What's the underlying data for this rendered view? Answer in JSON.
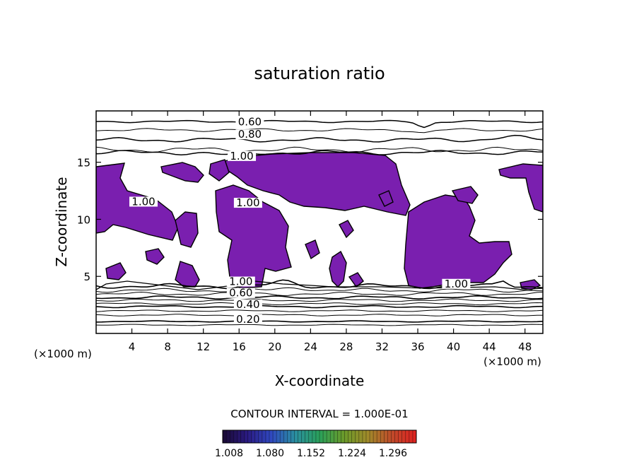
{
  "chart_data": {
    "type": "heatmap",
    "title": "saturation ratio",
    "xlabel": "X-coordinate",
    "ylabel": "Z-coordinate",
    "x_unit": "(×1000 m)",
    "y_unit": "(×1000 m)",
    "xlim": [
      0,
      50
    ],
    "ylim": [
      0,
      19.5
    ],
    "x_ticks": [
      4,
      8,
      12,
      16,
      20,
      24,
      28,
      32,
      36,
      40,
      44,
      48
    ],
    "y_ticks": [
      5,
      10,
      15
    ],
    "contour_interval_label": "CONTOUR INTERVAL = 1.000E-01",
    "colorbar": {
      "tick_labels": [
        "1.008",
        "1.080",
        "1.152",
        "1.224",
        "1.296"
      ],
      "colors": [
        "#1a0a33",
        "#2a1a80",
        "#3048c0",
        "#2a8fa0",
        "#2aa05a",
        "#6a9a2a",
        "#a08a2a",
        "#c04a2a",
        "#e02020"
      ]
    },
    "fill_color": "#7a1faf",
    "contour_labels": [
      {
        "text": "0.60",
        "x": 17.2,
        "z": 18.3
      },
      {
        "text": "0.80",
        "x": 17.2,
        "z": 17.2
      },
      {
        "text": "1.00",
        "x": 16.3,
        "z": 15.3
      },
      {
        "text": "1.00",
        "x": 5.3,
        "z": 11.3
      },
      {
        "text": "1.00",
        "x": 17.0,
        "z": 11.2
      },
      {
        "text": "1.00",
        "x": 16.2,
        "z": 4.3
      },
      {
        "text": "0.60",
        "x": 16.2,
        "z": 3.3
      },
      {
        "text": "0.40",
        "x": 17.0,
        "z": 2.3
      },
      {
        "text": "0.20",
        "x": 17.0,
        "z": 1.0
      },
      {
        "text": "1.00",
        "x": 40.3,
        "z": 4.1
      }
    ]
  }
}
